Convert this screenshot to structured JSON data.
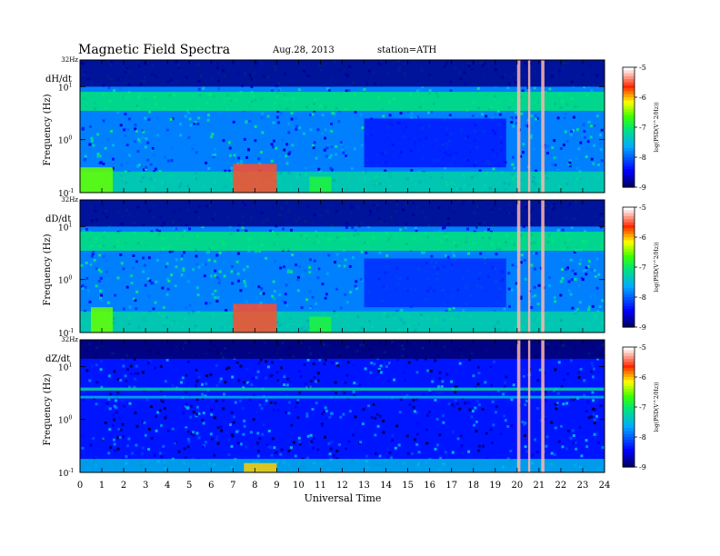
{
  "header": {
    "title": "Magnetic  Field  Spectra",
    "date": "Aug.28, 2013",
    "station": "station=ATH"
  },
  "x_axis": {
    "label": "Universal Time",
    "ticks": [
      "0",
      "1",
      "2",
      "3",
      "4",
      "5",
      "6",
      "7",
      "8",
      "9",
      "10",
      "11",
      "12",
      "13",
      "14",
      "15",
      "16",
      "17",
      "18",
      "19",
      "20",
      "21",
      "22",
      "23",
      "24"
    ]
  },
  "y_axis": {
    "label": "Frequency  (Hz)",
    "top_label": "32Hz",
    "ticks": [
      "10",
      "10",
      "10"
    ],
    "tick_exponents": [
      "1",
      "0",
      "-1"
    ]
  },
  "colorbar": {
    "label": "log(PSD(V^2/Hz))",
    "ticks": [
      "-5",
      "-6",
      "-7",
      "-8",
      "-9"
    ]
  },
  "chart_data": [
    {
      "type": "heatmap",
      "title": "dH/dt",
      "xlabel": "Universal Time",
      "ylabel": "Frequency  (Hz)",
      "xlim": [
        0,
        24
      ],
      "ylim": [
        0.1,
        32
      ],
      "y_scale": "log",
      "zlim": [
        -9,
        -5
      ],
      "z_label": "log(PSD(V^2/Hz))",
      "bg_level": -7.8,
      "features": [
        {
          "t": [
            0,
            24
          ],
          "f": [
            10,
            32
          ],
          "z": -8.8
        },
        {
          "t": [
            0,
            24
          ],
          "f": [
            3.5,
            8
          ],
          "z": -7.0
        },
        {
          "t": [
            0,
            24
          ],
          "f": [
            0.1,
            0.25
          ],
          "z": -7.2
        },
        {
          "t": [
            13,
            19.5
          ],
          "f": [
            0.3,
            2.5
          ],
          "z": -8.3
        },
        {
          "t": [
            7,
            9
          ],
          "f": [
            0.1,
            0.35
          ],
          "z": -5.5
        },
        {
          "t": [
            0,
            1.5
          ],
          "f": [
            0.1,
            0.3
          ],
          "z": -6.5
        },
        {
          "t": [
            10.5,
            11.5
          ],
          "f": [
            0.1,
            0.2
          ],
          "z": -6.8
        },
        {
          "t": [
            20,
            20.15
          ],
          "f": [
            0.1,
            32
          ],
          "z": -5.2
        },
        {
          "t": [
            20.5,
            20.6
          ],
          "f": [
            0.1,
            32
          ],
          "z": -5.2
        },
        {
          "t": [
            21.1,
            21.25
          ],
          "f": [
            0.1,
            32
          ],
          "z": -5.2
        }
      ]
    },
    {
      "type": "heatmap",
      "title": "dD/dt",
      "xlabel": "Universal Time",
      "ylabel": "Frequency  (Hz)",
      "xlim": [
        0,
        24
      ],
      "ylim": [
        0.1,
        32
      ],
      "y_scale": "log",
      "zlim": [
        -9,
        -5
      ],
      "z_label": "log(PSD(V^2/Hz))",
      "bg_level": -7.8,
      "features": [
        {
          "t": [
            0,
            24
          ],
          "f": [
            10,
            32
          ],
          "z": -8.8
        },
        {
          "t": [
            0,
            24
          ],
          "f": [
            3.5,
            8
          ],
          "z": -7.0
        },
        {
          "t": [
            0,
            24
          ],
          "f": [
            0.1,
            0.25
          ],
          "z": -7.2
        },
        {
          "t": [
            13,
            19.5
          ],
          "f": [
            0.3,
            2.5
          ],
          "z": -8.2
        },
        {
          "t": [
            7,
            9
          ],
          "f": [
            0.1,
            0.35
          ],
          "z": -5.5
        },
        {
          "t": [
            0.5,
            1.5
          ],
          "f": [
            0.1,
            0.3
          ],
          "z": -6.5
        },
        {
          "t": [
            10.5,
            11.5
          ],
          "f": [
            0.1,
            0.2
          ],
          "z": -6.8
        },
        {
          "t": [
            20,
            20.15
          ],
          "f": [
            0.1,
            32
          ],
          "z": -5.2
        },
        {
          "t": [
            20.5,
            20.6
          ],
          "f": [
            0.1,
            32
          ],
          "z": -5.2
        },
        {
          "t": [
            21.1,
            21.25
          ],
          "f": [
            0.1,
            32
          ],
          "z": -5.2
        }
      ]
    },
    {
      "type": "heatmap",
      "title": "dZ/dt",
      "xlabel": "Universal Time",
      "ylabel": "Frequency  (Hz)",
      "xlim": [
        0,
        24
      ],
      "ylim": [
        0.1,
        32
      ],
      "y_scale": "log",
      "zlim": [
        -9,
        -5
      ],
      "z_label": "log(PSD(V^2/Hz))",
      "bg_level": -8.3,
      "features": [
        {
          "t": [
            0,
            24
          ],
          "f": [
            14,
            32
          ],
          "z": -8.9
        },
        {
          "t": [
            0,
            24
          ],
          "f": [
            3.5,
            4
          ],
          "z": -7.2
        },
        {
          "t": [
            0,
            24
          ],
          "f": [
            2.5,
            2.8
          ],
          "z": -7.5
        },
        {
          "t": [
            0,
            24
          ],
          "f": [
            0.1,
            0.18
          ],
          "z": -7.5
        },
        {
          "t": [
            7.5,
            9
          ],
          "f": [
            0.1,
            0.15
          ],
          "z": -6.0
        },
        {
          "t": [
            20,
            20.15
          ],
          "f": [
            0.1,
            32
          ],
          "z": -5.2
        },
        {
          "t": [
            20.5,
            20.6
          ],
          "f": [
            0.1,
            32
          ],
          "z": -5.2
        },
        {
          "t": [
            21.1,
            21.25
          ],
          "f": [
            0.1,
            32
          ],
          "z": -5.2
        }
      ]
    }
  ]
}
